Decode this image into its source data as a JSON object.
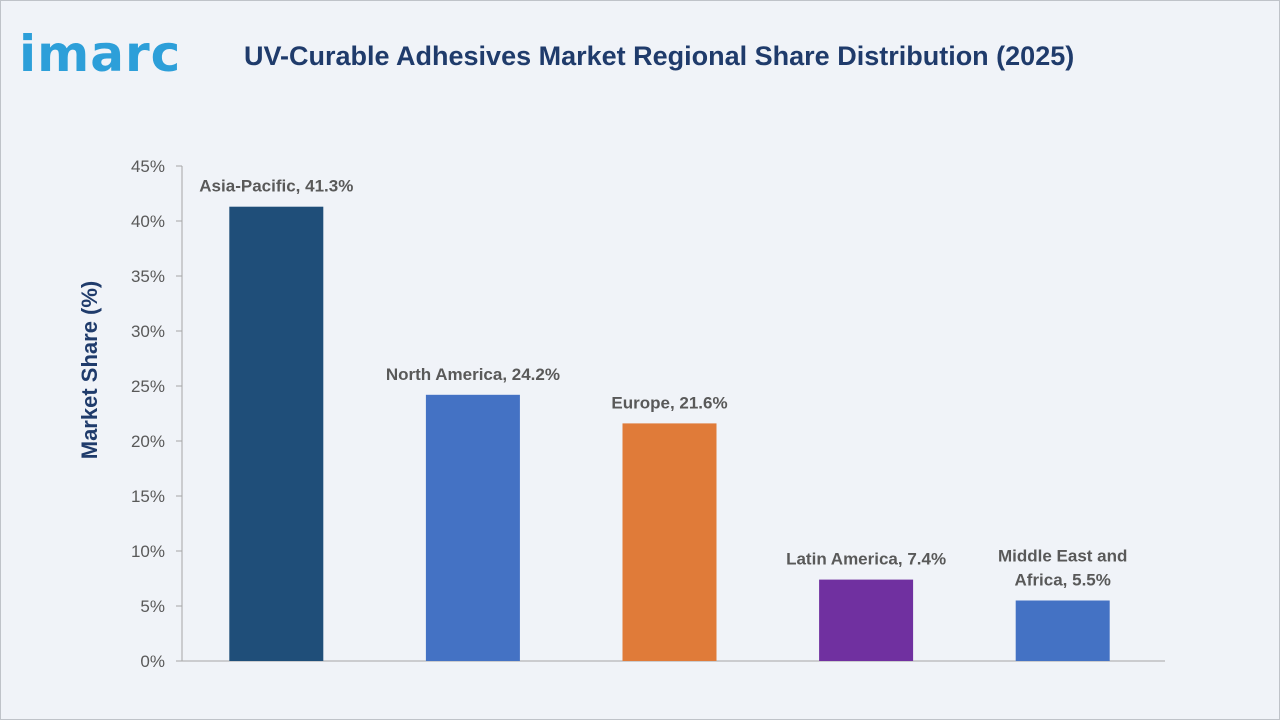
{
  "brand": {
    "logo_text": "imarc",
    "logo_color": "#2d9fd9"
  },
  "chart_data": {
    "type": "bar",
    "title": "UV-Curable Adhesives Market Regional Share Distribution (2025)",
    "xlabel": "",
    "ylabel": "Market Share (%)",
    "ylim": [
      0,
      45
    ],
    "yticks": [
      0,
      5,
      10,
      15,
      20,
      25,
      30,
      35,
      40,
      45
    ],
    "ytick_format": "%",
    "grid": false,
    "categories": [
      "Asia-Pacific",
      "North America",
      "Europe",
      "Latin America",
      "Middle East and Africa"
    ],
    "values": [
      41.3,
      24.2,
      21.6,
      7.4,
      5.5
    ],
    "data_labels": [
      [
        "Asia-Pacific, 41.3%"
      ],
      [
        "North America, 24.2%"
      ],
      [
        "Europe, 21.6%"
      ],
      [
        "Latin America, 7.4%"
      ],
      [
        "Middle East and",
        "Africa, 5.5%"
      ]
    ],
    "colors": [
      "#1f4e79",
      "#4472c4",
      "#e07b39",
      "#7030a0",
      "#4472c4"
    ]
  }
}
